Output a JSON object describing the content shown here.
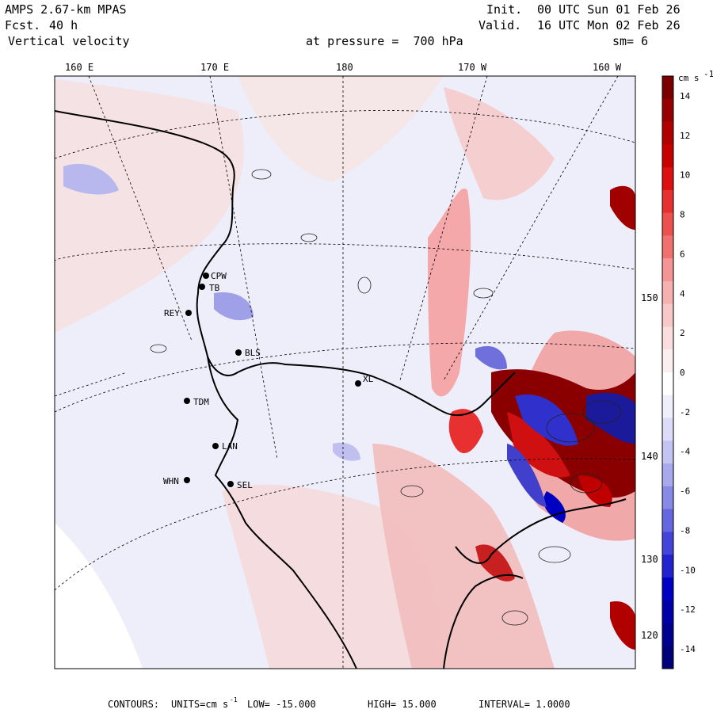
{
  "header": {
    "model": "AMPS 2.67-km MPAS",
    "fcst_label": "Fcst.",
    "fcst_value": "40 h",
    "field": "Vertical velocity",
    "init_label": "Init.",
    "init_value": "00 UTC Sun 01 Feb 26",
    "valid_label": "Valid.",
    "valid_value": "16 UTC Mon 02 Feb 26",
    "pressure_text": "at pressure =  700 hPa",
    "smoothing": "sm= 6"
  },
  "axes": {
    "top_lon_labels": [
      "160 E",
      "170 E",
      "180",
      "170 W",
      "160 W"
    ],
    "right_lon_labels": [
      "150 W",
      "140 W",
      "130 W",
      "120 W"
    ]
  },
  "stations": [
    {
      "code": "CPW"
    },
    {
      "code": "TB"
    },
    {
      "code": "REY"
    },
    {
      "code": "BLS"
    },
    {
      "code": "TDM"
    },
    {
      "code": "LAN"
    },
    {
      "code": "WHN"
    },
    {
      "code": "SEL"
    },
    {
      "code": "XL"
    }
  ],
  "colorbar": {
    "units_label": "cm s",
    "units_exp": "-1",
    "ticks": [
      "14",
      "12",
      "10",
      "8",
      "6",
      "4",
      "2",
      "0",
      "-2",
      "-4",
      "-6",
      "-8",
      "-10",
      "-12",
      "-14"
    ],
    "colors": [
      "#7a0000",
      "#960000",
      "#b00000",
      "#c80000",
      "#dc1010",
      "#e83030",
      "#ee5050",
      "#f07070",
      "#f49494",
      "#f6b0b0",
      "#f8c8c8",
      "#fadede",
      "#fcefef",
      "#ffffff",
      "#efeffc",
      "#dcdcf8",
      "#c4c4f2",
      "#a8a8ec",
      "#8888e6",
      "#6666e0",
      "#4444da",
      "#2222d0",
      "#0000c4",
      "#0000a8",
      "#000090",
      "#000078"
    ]
  },
  "footer": {
    "label": "CONTOURS:",
    "units_text": "UNITS=cm s",
    "units_exp": "-1",
    "low": "LOW= -15.000",
    "high": "HIGH= 15.000",
    "interval": "INTERVAL= 1.0000"
  }
}
